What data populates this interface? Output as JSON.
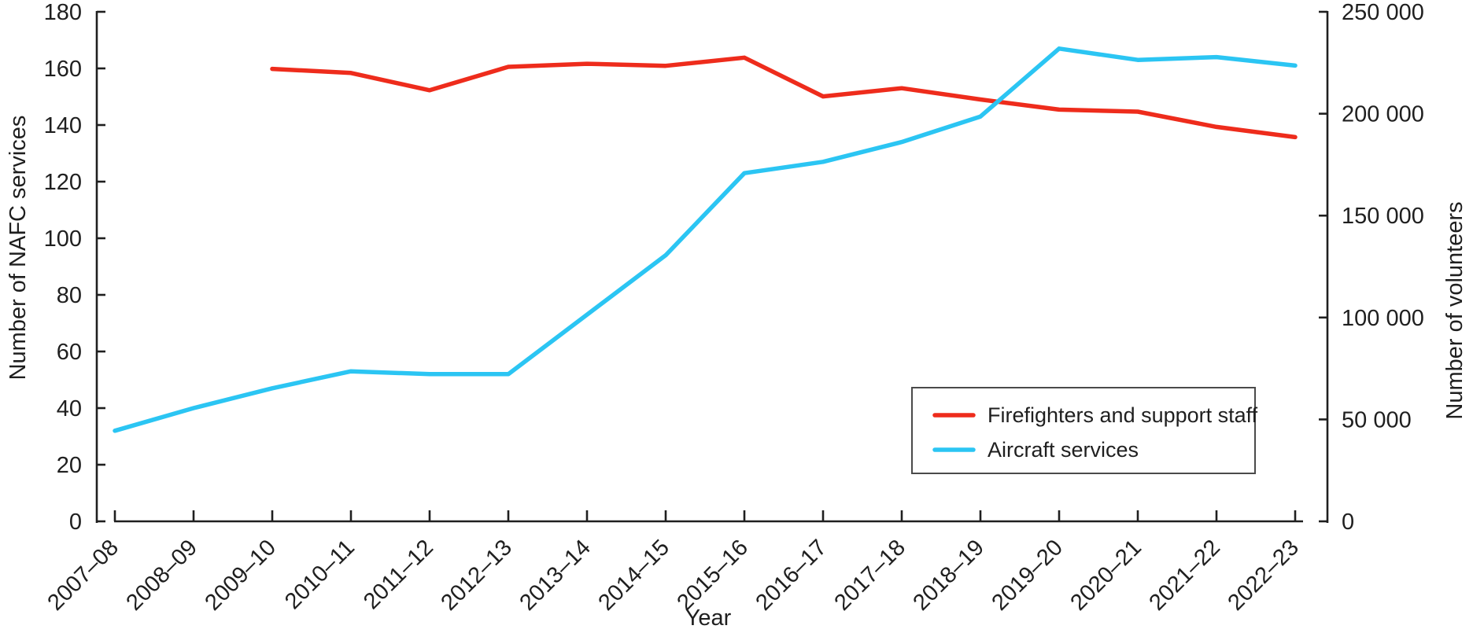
{
  "figure": {
    "background": "#ffffff",
    "axis_color": "#1f1f1f"
  },
  "chart_data": {
    "type": "line",
    "title": "",
    "x_label": "Year",
    "categories": [
      "2007–08",
      "2008–09",
      "2009–10",
      "2010–11",
      "2011–12",
      "2012–13",
      "2013–14",
      "2014–15",
      "2015–16",
      "2016–17",
      "2017–18",
      "2018–19",
      "2019–20",
      "2020–21",
      "2021–22",
      "2022–23"
    ],
    "left_axis": {
      "label": "Number of NAFC services",
      "min": 0,
      "max": 180,
      "tick_step": 20,
      "tick_labels": [
        "0",
        "20",
        "40",
        "60",
        "80",
        "100",
        "120",
        "140",
        "160",
        "180"
      ]
    },
    "right_axis": {
      "label": "Number of volunteers",
      "min": 0,
      "max": 250000,
      "tick_step": 50000,
      "tick_labels": [
        "0",
        "50 000",
        "100 000",
        "150 000",
        "200 000",
        "250 000"
      ]
    },
    "grid": false,
    "legend_position": "lower right",
    "series": [
      {
        "name": "Firefighters and support staff",
        "axis": "right",
        "color": "#ee2c1c",
        "values": [
          null,
          null,
          222000,
          220000,
          211500,
          223000,
          224500,
          223500,
          227500,
          208500,
          212500,
          207000,
          202000,
          201000,
          193500,
          188500
        ]
      },
      {
        "name": "Aircraft services",
        "axis": "left",
        "color": "#2bc5f3",
        "values": [
          32,
          40,
          47,
          53,
          52,
          52,
          73,
          94,
          123,
          127,
          134,
          143,
          167,
          163,
          164,
          161
        ]
      }
    ]
  },
  "legend": {
    "items": [
      {
        "label": "Firefighters and support staff"
      },
      {
        "label": "Aircraft services"
      }
    ]
  }
}
